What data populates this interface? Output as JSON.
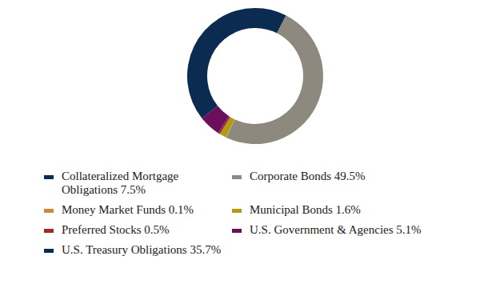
{
  "chart_data": {
    "type": "pie",
    "categories": [
      "Collateralized Mortgage Obligations",
      "Corporate Bonds",
      "Money Market Funds",
      "Municipal Bonds",
      "Preferred Stocks",
      "U.S. Government & Agencies",
      "U.S. Treasury Obligations"
    ],
    "values": [
      7.5,
      49.5,
      0.1,
      1.6,
      0.5,
      5.1,
      35.7
    ],
    "value_labels": [
      "7.5%",
      "49.5%",
      "0.1%",
      "1.6%",
      "0.5%",
      "5.1%",
      "35.7%"
    ],
    "colors": [
      "#0c2b50",
      "#8e897e",
      "#c98a3c",
      "#b39a14",
      "#9e2a2b",
      "#6b0f5c",
      "#0c2b50"
    ],
    "legend": "bottom"
  }
}
